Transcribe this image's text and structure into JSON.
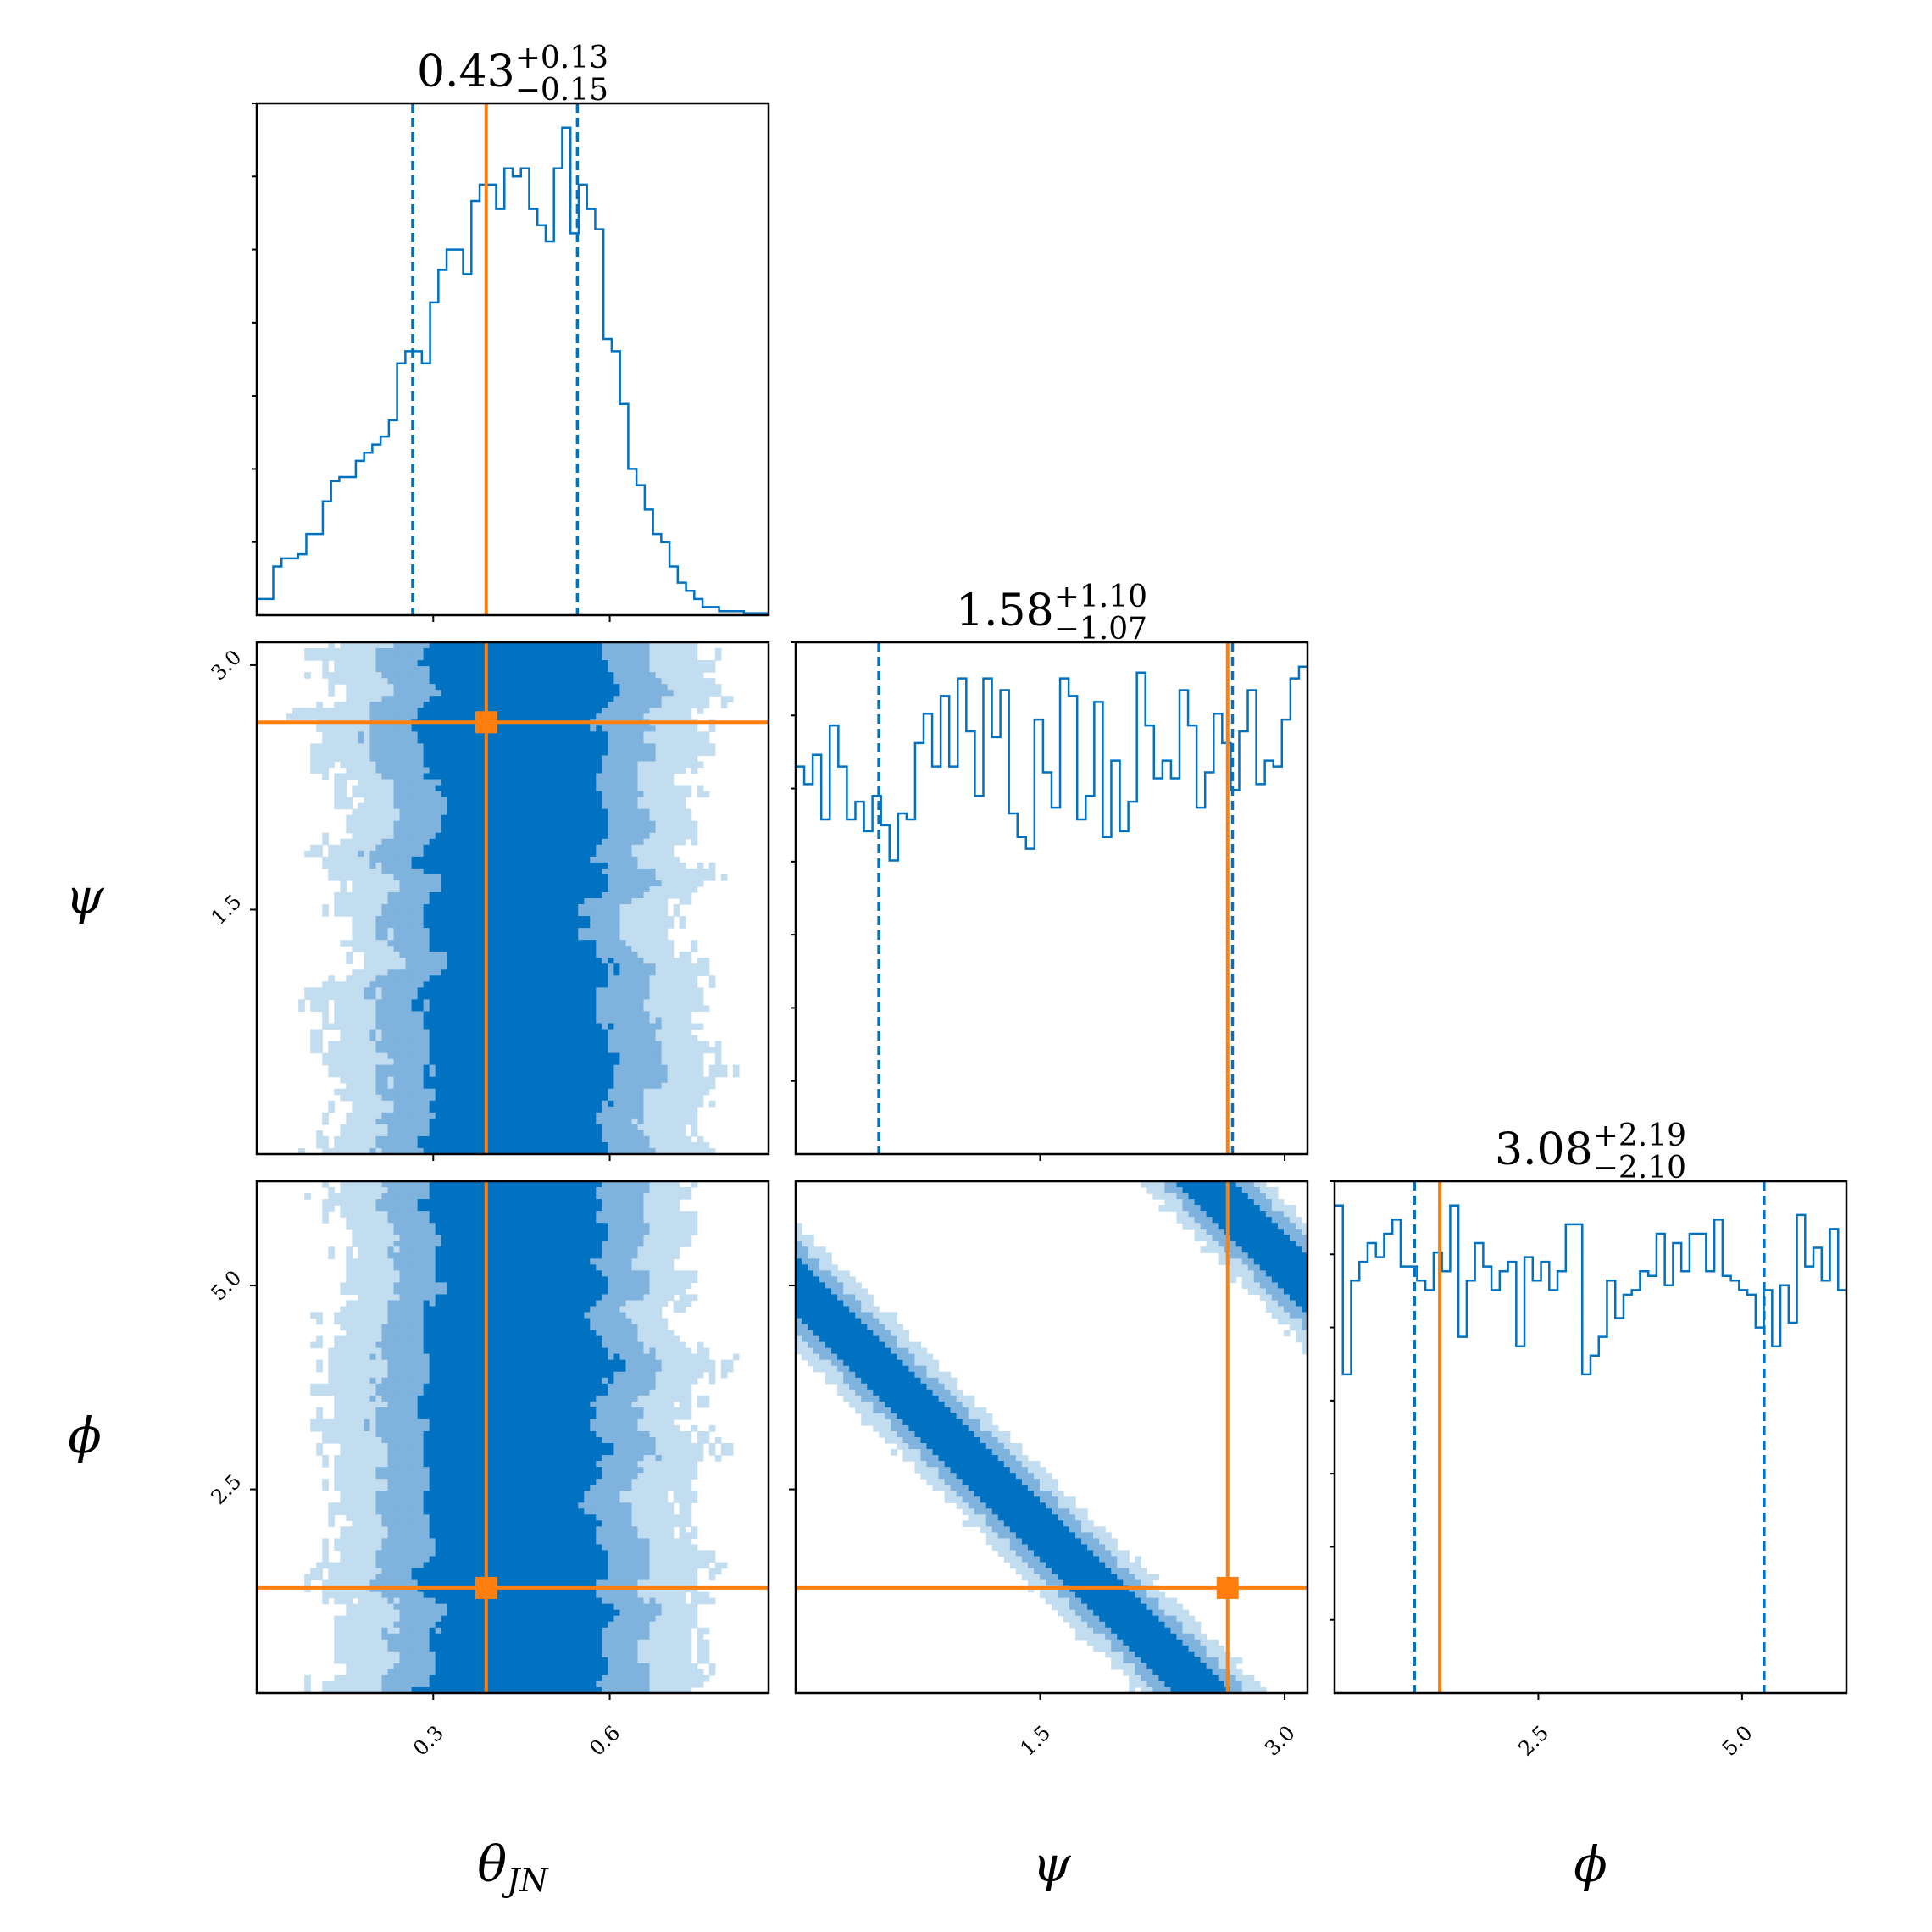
{
  "colors": {
    "hist": "#0072c1",
    "truth": "#ff7f0e",
    "level_dark": "#0072c1",
    "level_mid": "#7fb3dd",
    "level_light": "#c2dcf0",
    "axes": "#000000"
  },
  "chart_data": {
    "type": "corner",
    "parameters": [
      {
        "key": "theta_jn",
        "label": "θ",
        "label_sub": "JN",
        "range": [
          0.0,
          0.87
        ],
        "ticks": [
          0.3,
          0.6
        ],
        "tick_labels": [
          "0.3",
          "0.6"
        ],
        "median": "0.43",
        "upper": "+0.13",
        "lower": "−0.15",
        "quantiles": [
          0.265,
          0.545
        ],
        "truth": 0.39,
        "hist_edges": [
          0.0,
          0.87
        ],
        "hist_values": [
          4,
          4,
          12,
          14,
          14,
          15,
          20,
          20,
          28,
          33,
          34,
          34,
          38,
          40,
          42,
          44,
          48,
          62,
          65,
          65,
          62,
          77,
          85,
          90,
          90,
          84,
          102,
          106,
          106,
          100,
          110,
          108,
          110,
          100,
          96,
          92,
          110,
          120,
          94,
          106,
          100,
          95,
          68,
          65,
          52,
          36,
          32,
          26,
          20,
          18,
          12,
          8,
          6,
          4,
          2,
          2,
          1,
          1,
          1,
          0.5,
          0.5,
          0.5
        ]
      },
      {
        "key": "psi",
        "label": "ψ",
        "label_sub": "",
        "range": [
          0.0,
          3.14
        ],
        "ticks": [
          1.5,
          3.0
        ],
        "tick_labels": [
          "1.5",
          "3.0"
        ],
        "median": "1.58",
        "upper": "+1.10",
        "lower": "−1.07",
        "quantiles": [
          0.51,
          2.68
        ],
        "truth": 2.65,
        "hist_edges": [
          0.0,
          3.14
        ],
        "hist_values": [
          66,
          63,
          68,
          57,
          73,
          66,
          57,
          60,
          55,
          61,
          56,
          50,
          58,
          57,
          70,
          75,
          66,
          78,
          66,
          81,
          72,
          61,
          81,
          71,
          79,
          58,
          54,
          52,
          74,
          65,
          59,
          81,
          78,
          57,
          61,
          77,
          54,
          67,
          55,
          60,
          82,
          73,
          64,
          67,
          64,
          79,
          73,
          59,
          65,
          75,
          70,
          62,
          72,
          79,
          63,
          67,
          66,
          74,
          81,
          83
        ]
      },
      {
        "key": "phi",
        "label": "ϕ",
        "label_sub": "",
        "range": [
          0.0,
          6.28
        ],
        "ticks": [
          2.5,
          5.0
        ],
        "tick_labels": [
          "2.5",
          "5.0"
        ],
        "median": "3.08",
        "upper": "+2.19",
        "lower": "−2.10",
        "quantiles": [
          0.98,
          5.27
        ],
        "truth": 1.29,
        "hist_edges": [
          0.0,
          6.28
        ],
        "hist_values": [
          104,
          68,
          88,
          92,
          96,
          93,
          98,
          101,
          91,
          91,
          88,
          86,
          94,
          90,
          104,
          76,
          88,
          96,
          91,
          86,
          90,
          92,
          74,
          93,
          88,
          92,
          86,
          90,
          100,
          100,
          68,
          72,
          76,
          88,
          80,
          85,
          86,
          90,
          89,
          98,
          87,
          96,
          90,
          98,
          98,
          90,
          101,
          89,
          88,
          86,
          85,
          78,
          86,
          74,
          87,
          79,
          102,
          91,
          95,
          88,
          99,
          86
        ]
      }
    ],
    "pairs": [
      {
        "x": "theta_jn",
        "y": "psi",
        "truth_point": [
          0.39,
          2.65
        ]
      },
      {
        "x": "theta_jn",
        "y": "phi",
        "truth_point": [
          0.39,
          1.29
        ]
      },
      {
        "x": "psi",
        "y": "phi",
        "truth_point": [
          2.65,
          1.29
        ]
      }
    ]
  }
}
